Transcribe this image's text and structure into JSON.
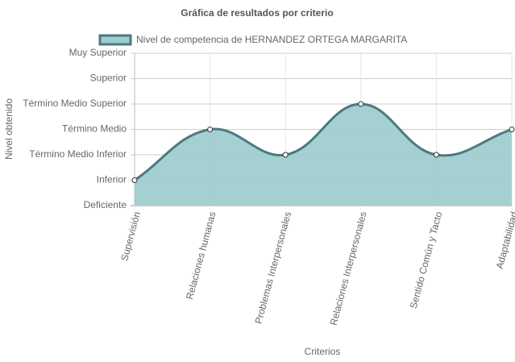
{
  "chart_data": {
    "type": "line",
    "title": "Gráfica de resultados por criterio",
    "x_label": "Criterios",
    "y_label": "Nivel obtenido",
    "categories": [
      "Supervisión",
      "Relaciones humanas",
      "Problemas Interpersonales",
      "Relaciones Interpersonales",
      "Sentido Común y Tacto",
      "Adaptabilidad"
    ],
    "series": [
      {
        "name": "Nivel de competencia de HERNANDEZ ORTEGA MARGARITA",
        "color": "#4a7a80",
        "fill_color": "#9fcdcf",
        "values": [
          1,
          3,
          2,
          4,
          2,
          3
        ]
      }
    ],
    "ylim": [
      0,
      6
    ],
    "yticks": [
      {
        "value": 0,
        "label": "Deficiente"
      },
      {
        "value": 1,
        "label": "Inferior"
      },
      {
        "value": 2,
        "label": "Término Medio Inferior"
      },
      {
        "value": 3,
        "label": "Término Medio"
      },
      {
        "value": 4,
        "label": "Término Medio Superior"
      },
      {
        "value": 5,
        "label": "Superior"
      },
      {
        "value": 6,
        "label": "Muy Superior"
      }
    ],
    "grid": true,
    "fill": true,
    "legend": "top"
  }
}
